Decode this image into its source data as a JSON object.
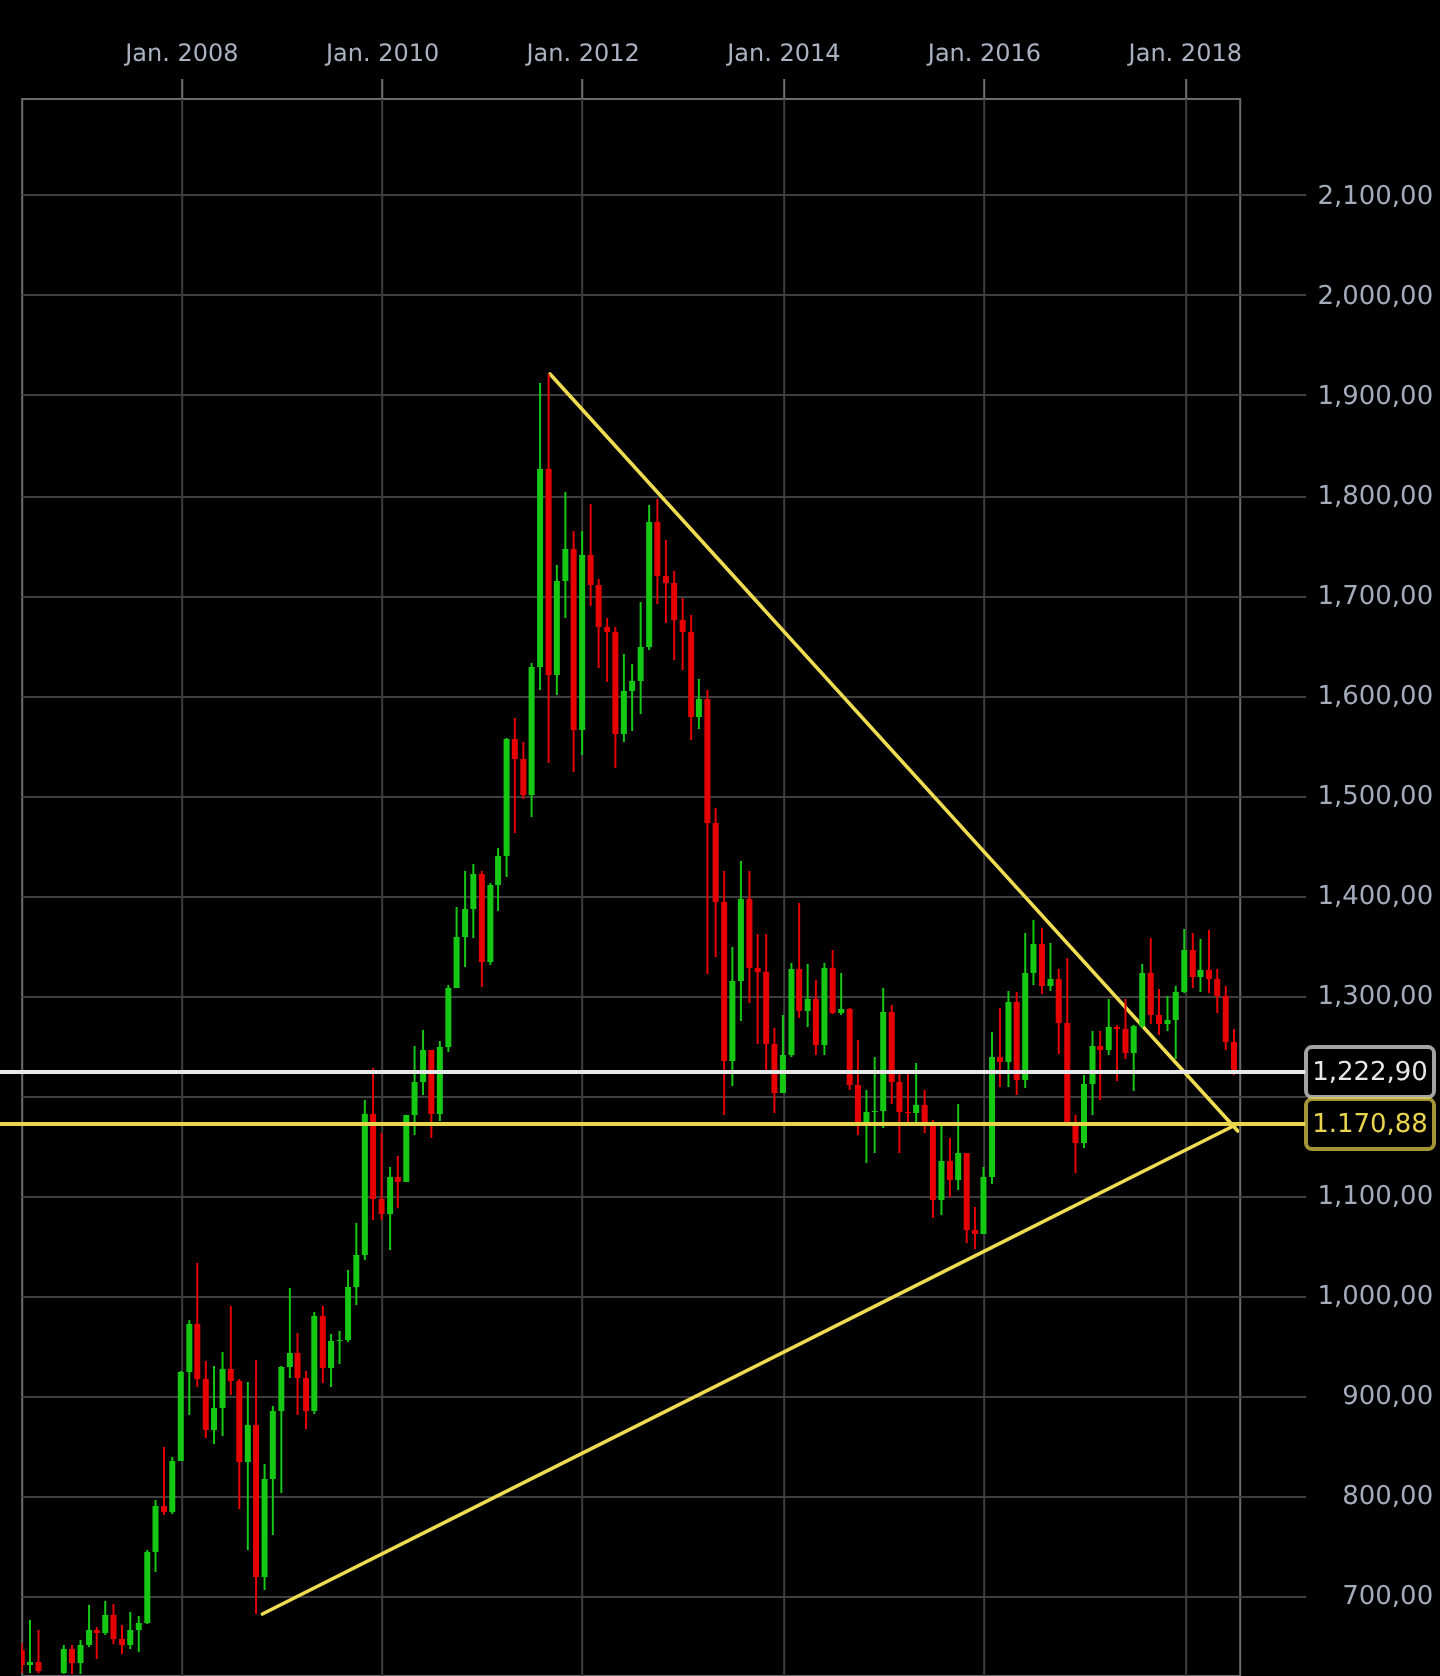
{
  "chart_data": {
    "type": "candlestick",
    "x": [
      "2006-06",
      "2006-07",
      "2006-08",
      "2006-11",
      "2006-12",
      "2007-01",
      "2007-02",
      "2007-03",
      "2007-04",
      "2007-05",
      "2007-06",
      "2007-07",
      "2007-08",
      "2007-09",
      "2007-10",
      "2007-11",
      "2007-12",
      "2008-01",
      "2008-02",
      "2008-03",
      "2008-04",
      "2008-05",
      "2008-06",
      "2008-07",
      "2008-08",
      "2008-09",
      "2008-10",
      "2008-11",
      "2008-12",
      "2009-01",
      "2009-02",
      "2009-03",
      "2009-04",
      "2009-05",
      "2009-06",
      "2009-07",
      "2009-08",
      "2009-09",
      "2009-10",
      "2009-11",
      "2009-12",
      "2010-01",
      "2010-02",
      "2010-03",
      "2010-04",
      "2010-05",
      "2010-06",
      "2010-07",
      "2010-08",
      "2010-09",
      "2010-10",
      "2010-11",
      "2010-12",
      "2011-01",
      "2011-02",
      "2011-03",
      "2011-04",
      "2011-05",
      "2011-06",
      "2011-07",
      "2011-08",
      "2011-09",
      "2011-10",
      "2011-11",
      "2011-12",
      "2012-01",
      "2012-02",
      "2012-03",
      "2012-04",
      "2012-05",
      "2012-06",
      "2012-07",
      "2012-08",
      "2012-09",
      "2012-10",
      "2012-11",
      "2012-12",
      "2013-01",
      "2013-02",
      "2013-03",
      "2013-04",
      "2013-05",
      "2013-06",
      "2013-07",
      "2013-08",
      "2013-09",
      "2013-10",
      "2013-11",
      "2013-12",
      "2014-01",
      "2014-02",
      "2014-03",
      "2014-04",
      "2014-05",
      "2014-06",
      "2014-07",
      "2014-08",
      "2014-09",
      "2014-10",
      "2014-11",
      "2014-12",
      "2015-01",
      "2015-02",
      "2015-03",
      "2015-04",
      "2015-05",
      "2015-06",
      "2015-07",
      "2015-08",
      "2015-09",
      "2015-10",
      "2015-11",
      "2015-12",
      "2016-01",
      "2016-02",
      "2016-03",
      "2016-04",
      "2016-05",
      "2016-06",
      "2016-07",
      "2016-08",
      "2016-09",
      "2016-10",
      "2016-11",
      "2016-12",
      "2017-01",
      "2017-02",
      "2017-03",
      "2017-04",
      "2017-05",
      "2017-06",
      "2017-07",
      "2017-08",
      "2017-09",
      "2017-10",
      "2017-11",
      "2017-12",
      "2018-01",
      "2018-02",
      "2018-03",
      "2018-04",
      "2018-05",
      "2018-06",
      "2018-07"
    ],
    "ohlc": [
      [
        645,
        652,
        622,
        630
      ],
      [
        630,
        675,
        622,
        633
      ],
      [
        633,
        665,
        622,
        624
      ],
      [
        622,
        650,
        621,
        646
      ],
      [
        646,
        650,
        621,
        632
      ],
      [
        632,
        655,
        621,
        650
      ],
      [
        650,
        690,
        648,
        665
      ],
      [
        665,
        668,
        636,
        662
      ],
      [
        662,
        694,
        660,
        680
      ],
      [
        680,
        691,
        651,
        656
      ],
      [
        656,
        670,
        641,
        650
      ],
      [
        650,
        683,
        646,
        665
      ],
      [
        665,
        679,
        643,
        672
      ],
      [
        672,
        745,
        671,
        743
      ],
      [
        743,
        795,
        723,
        789
      ],
      [
        789,
        848,
        780,
        783
      ],
      [
        783,
        838,
        781,
        834
      ],
      [
        834,
        924,
        834,
        923
      ],
      [
        923,
        975,
        880,
        971
      ],
      [
        971,
        1032,
        908,
        916
      ],
      [
        916,
        934,
        857,
        865
      ],
      [
        865,
        929,
        851,
        887
      ],
      [
        887,
        943,
        859,
        926
      ],
      [
        926,
        989,
        900,
        914
      ],
      [
        914,
        916,
        786,
        833
      ],
      [
        833,
        913,
        745,
        870
      ],
      [
        870,
        935,
        681,
        718
      ],
      [
        718,
        831,
        705,
        816
      ],
      [
        816,
        889,
        760,
        884
      ],
      [
        884,
        929,
        802,
        928
      ],
      [
        928,
        1007,
        917,
        942
      ],
      [
        942,
        962,
        880,
        917
      ],
      [
        917,
        924,
        866,
        884
      ],
      [
        884,
        983,
        881,
        979
      ],
      [
        979,
        989,
        912,
        927
      ],
      [
        927,
        961,
        908,
        954
      ],
      [
        954,
        964,
        931,
        955
      ],
      [
        955,
        1025,
        953,
        1008
      ],
      [
        1008,
        1072,
        990,
        1040
      ],
      [
        1040,
        1195,
        1035,
        1181
      ],
      [
        1181,
        1227,
        1075,
        1096
      ],
      [
        1096,
        1162,
        1075,
        1081
      ],
      [
        1081,
        1128,
        1045,
        1118
      ],
      [
        1118,
        1139,
        1087,
        1113
      ],
      [
        1113,
        1180,
        1113,
        1180
      ],
      [
        1180,
        1249,
        1160,
        1213
      ],
      [
        1213,
        1265,
        1200,
        1245
      ],
      [
        1245,
        1245,
        1157,
        1181
      ],
      [
        1181,
        1254,
        1174,
        1248
      ],
      [
        1248,
        1310,
        1243,
        1307
      ],
      [
        1307,
        1388,
        1307,
        1358
      ],
      [
        1358,
        1424,
        1328,
        1386
      ],
      [
        1386,
        1431,
        1357,
        1421
      ],
      [
        1421,
        1424,
        1308,
        1333
      ],
      [
        1333,
        1412,
        1330,
        1410
      ],
      [
        1410,
        1447,
        1384,
        1439
      ],
      [
        1439,
        1557,
        1418,
        1556
      ],
      [
        1556,
        1577,
        1462,
        1536
      ],
      [
        1536,
        1553,
        1496,
        1500
      ],
      [
        1500,
        1632,
        1478,
        1628
      ],
      [
        1628,
        1912,
        1605,
        1826
      ],
      [
        1826,
        1921,
        1532,
        1620
      ],
      [
        1620,
        1730,
        1600,
        1714
      ],
      [
        1714,
        1803,
        1677,
        1746
      ],
      [
        1746,
        1764,
        1523,
        1565
      ],
      [
        1565,
        1764,
        1540,
        1740
      ],
      [
        1740,
        1791,
        1689,
        1710
      ],
      [
        1710,
        1716,
        1627,
        1668
      ],
      [
        1668,
        1677,
        1613,
        1663
      ],
      [
        1663,
        1668,
        1527,
        1561
      ],
      [
        1561,
        1641,
        1553,
        1604
      ],
      [
        1604,
        1631,
        1564,
        1614
      ],
      [
        1614,
        1693,
        1581,
        1648
      ],
      [
        1648,
        1790,
        1645,
        1773
      ],
      [
        1773,
        1796,
        1691,
        1719
      ],
      [
        1719,
        1755,
        1672,
        1712
      ],
      [
        1712,
        1724,
        1635,
        1675
      ],
      [
        1675,
        1697,
        1625,
        1663
      ],
      [
        1663,
        1680,
        1555,
        1578
      ],
      [
        1578,
        1616,
        1566,
        1596
      ],
      [
        1596,
        1605,
        1321,
        1472
      ],
      [
        1472,
        1487,
        1338,
        1393
      ],
      [
        1393,
        1424,
        1180,
        1234
      ],
      [
        1234,
        1348,
        1209,
        1314
      ],
      [
        1314,
        1434,
        1274,
        1396
      ],
      [
        1396,
        1424,
        1292,
        1327
      ],
      [
        1327,
        1361,
        1251,
        1323
      ],
      [
        1323,
        1361,
        1221,
        1251
      ],
      [
        1251,
        1267,
        1182,
        1202
      ],
      [
        1202,
        1280,
        1202,
        1240
      ],
      [
        1240,
        1332,
        1238,
        1326
      ],
      [
        1326,
        1392,
        1277,
        1284
      ],
      [
        1284,
        1331,
        1268,
        1296
      ],
      [
        1296,
        1315,
        1240,
        1250
      ],
      [
        1250,
        1332,
        1240,
        1327
      ],
      [
        1327,
        1345,
        1281,
        1282
      ],
      [
        1282,
        1322,
        1280,
        1286
      ],
      [
        1286,
        1287,
        1205,
        1210
      ],
      [
        1210,
        1255,
        1160,
        1171
      ],
      [
        1171,
        1205,
        1132,
        1183
      ],
      [
        1183,
        1238,
        1142,
        1184
      ],
      [
        1184,
        1307,
        1167,
        1283
      ],
      [
        1283,
        1290,
        1191,
        1213
      ],
      [
        1213,
        1224,
        1142,
        1183
      ],
      [
        1183,
        1225,
        1170,
        1182
      ],
      [
        1182,
        1232,
        1170,
        1190
      ],
      [
        1190,
        1205,
        1162,
        1172
      ],
      [
        1172,
        1175,
        1077,
        1095
      ],
      [
        1095,
        1170,
        1080,
        1134
      ],
      [
        1134,
        1157,
        1098,
        1115
      ],
      [
        1115,
        1191,
        1105,
        1142
      ],
      [
        1142,
        1142,
        1052,
        1065
      ],
      [
        1065,
        1088,
        1046,
        1061
      ],
      [
        1061,
        1128,
        1061,
        1118
      ],
      [
        1118,
        1263,
        1111,
        1238
      ],
      [
        1238,
        1287,
        1208,
        1233
      ],
      [
        1233,
        1304,
        1208,
        1293
      ],
      [
        1293,
        1303,
        1200,
        1215
      ],
      [
        1215,
        1362,
        1207,
        1322
      ],
      [
        1322,
        1375,
        1310,
        1351
      ],
      [
        1351,
        1367,
        1301,
        1309
      ],
      [
        1309,
        1352,
        1304,
        1316
      ],
      [
        1316,
        1326,
        1241,
        1272
      ],
      [
        1272,
        1337,
        1171,
        1173
      ],
      [
        1173,
        1180,
        1122,
        1152
      ],
      [
        1152,
        1220,
        1147,
        1211
      ],
      [
        1211,
        1264,
        1180,
        1249
      ],
      [
        1249,
        1264,
        1195,
        1245
      ],
      [
        1245,
        1296,
        1240,
        1268
      ],
      [
        1268,
        1270,
        1214,
        1266
      ],
      [
        1266,
        1296,
        1236,
        1242
      ],
      [
        1242,
        1270,
        1204,
        1269
      ],
      [
        1269,
        1331,
        1267,
        1322
      ],
      [
        1322,
        1357,
        1271,
        1280
      ],
      [
        1280,
        1306,
        1260,
        1271
      ],
      [
        1271,
        1299,
        1264,
        1275
      ],
      [
        1275,
        1309,
        1236,
        1303
      ],
      [
        1303,
        1366,
        1302,
        1345
      ],
      [
        1345,
        1362,
        1307,
        1318
      ],
      [
        1318,
        1356,
        1303,
        1325
      ],
      [
        1325,
        1365,
        1302,
        1316
      ],
      [
        1316,
        1326,
        1282,
        1299
      ],
      [
        1299,
        1309,
        1245,
        1253
      ],
      [
        1253,
        1266,
        1220,
        1223
      ]
    ],
    "colors": [
      "#e60000",
      "#14c814",
      "#e60000",
      "#14c814",
      "#e60000",
      "#14c814",
      "#14c814",
      "#e60000",
      "#14c814",
      "#e60000",
      "#e60000",
      "#14c814",
      "#14c814",
      "#14c814",
      "#14c814",
      "#e60000",
      "#14c814",
      "#14c814",
      "#14c814",
      "#e60000",
      "#e60000",
      "#14c814",
      "#14c814",
      "#e60000",
      "#e60000",
      "#14c814",
      "#e60000",
      "#14c814",
      "#14c814",
      "#14c814",
      "#14c814",
      "#e60000",
      "#e60000",
      "#14c814",
      "#e60000",
      "#14c814",
      "#14c814",
      "#14c814",
      "#14c814",
      "#14c814",
      "#e60000",
      "#e60000",
      "#14c814",
      "#e60000",
      "#14c814",
      "#14c814",
      "#14c814",
      "#e60000",
      "#14c814",
      "#14c814",
      "#14c814",
      "#14c814",
      "#14c814",
      "#e60000",
      "#14c814",
      "#14c814",
      "#14c814",
      "#e60000",
      "#e60000",
      "#14c814",
      "#14c814",
      "#e60000",
      "#14c814",
      "#14c814",
      "#e60000",
      "#14c814",
      "#e60000",
      "#e60000",
      "#e60000",
      "#e60000",
      "#14c814",
      "#14c814",
      "#14c814",
      "#14c814",
      "#e60000",
      "#e60000",
      "#e60000",
      "#e60000",
      "#e60000",
      "#14c814",
      "#e60000",
      "#e60000",
      "#e60000",
      "#14c814",
      "#14c814",
      "#e60000",
      "#e60000",
      "#e60000",
      "#e60000",
      "#14c814",
      "#14c814",
      "#e60000",
      "#14c814",
      "#e60000",
      "#14c814",
      "#e60000",
      "#14c814",
      "#e60000",
      "#e60000",
      "#14c814",
      "#14c814",
      "#14c814",
      "#e60000",
      "#e60000",
      "#e60000",
      "#14c814",
      "#e60000",
      "#e60000",
      "#14c814",
      "#e60000",
      "#14c814",
      "#e60000",
      "#e60000",
      "#14c814",
      "#14c814",
      "#e60000",
      "#14c814",
      "#e60000",
      "#14c814",
      "#14c814",
      "#e60000",
      "#14c814",
      "#e60000",
      "#e60000",
      "#e60000",
      "#14c814",
      "#14c814",
      "#e60000",
      "#14c814",
      "#e60000",
      "#e60000",
      "#14c814",
      "#14c814",
      "#e60000",
      "#e60000",
      "#14c814",
      "#14c814",
      "#14c814",
      "#e60000",
      "#14c814",
      "#e60000",
      "#e60000",
      "#e60000",
      "#e60000"
    ],
    "series": [
      {
        "type": "line",
        "color": "#f0dc50",
        "x": [
          "2011-09-06",
          "2018-07-15"
        ],
        "values": [
          1921,
          1164
        ]
      },
      {
        "type": "line",
        "color": "#f0dc50",
        "x": [
          "2008-10-24",
          "2018-07-06"
        ],
        "values": [
          681,
          1170
        ]
      }
    ],
    "ref_lines": [
      {
        "axis": "y",
        "value": 1222.9,
        "label": "1,222,90",
        "color": "#e8e8e8"
      },
      {
        "axis": "y",
        "value": 1170.88,
        "label": "1.170,88",
        "color": "#e8d44d"
      }
    ],
    "xlim": [
      "2006-05-30",
      "2018-07-20"
    ],
    "xticks": [
      {
        "value": "2008-01",
        "label": "Jan. 2008"
      },
      {
        "value": "2010-01",
        "label": "Jan. 2010"
      },
      {
        "value": "2012-01",
        "label": "Jan. 2012"
      },
      {
        "value": "2014-01",
        "label": "Jan. 2014"
      },
      {
        "value": "2016-01",
        "label": "Jan. 2016"
      },
      {
        "value": "2018-01",
        "label": "Jan. 2018"
      }
    ],
    "ylim": [
      620,
      2197
    ],
    "yticks": [
      {
        "value": 700,
        "label": "700,00"
      },
      {
        "value": 800,
        "label": "800,00"
      },
      {
        "value": 900,
        "label": "900,00"
      },
      {
        "value": 1000,
        "label": "1,000,00"
      },
      {
        "value": 1100,
        "label": "1,100,00"
      },
      {
        "value": 1200,
        "label": null
      },
      {
        "value": 1300,
        "label": "1,300,00"
      },
      {
        "value": 1400,
        "label": "1,400,00"
      },
      {
        "value": 1500,
        "label": "1,500,00"
      },
      {
        "value": 1600,
        "label": "1,600,00"
      },
      {
        "value": 1700,
        "label": "1,700,00"
      },
      {
        "value": 1800,
        "label": "1,800,00"
      },
      {
        "value": 1900,
        "label": "1,900,00"
      },
      {
        "value": 2000,
        "label": "2,000,00"
      },
      {
        "value": 2100,
        "label": "2,100,00"
      }
    ],
    "grid": true
  }
}
